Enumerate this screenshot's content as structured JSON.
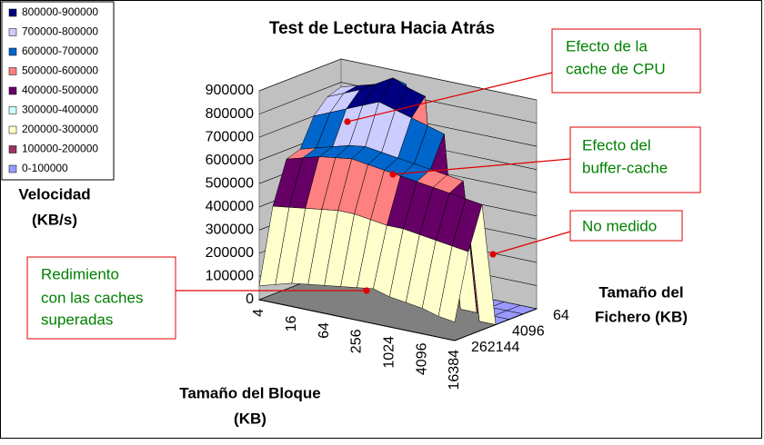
{
  "chart_data": {
    "type": "surface",
    "title": "Test de Lectura Hacia Atrás",
    "z_label": [
      "Velocidad",
      "(KB/s)"
    ],
    "x_label": [
      "Tamaño del Bloque",
      "(KB)"
    ],
    "y_label": [
      "Tamaño del",
      "Fichero (KB)"
    ],
    "categories": [
      4,
      null,
      16,
      null,
      64,
      null,
      256,
      null,
      1024,
      null,
      4096,
      null,
      16384
    ],
    "depth_categories": [
      64,
      null,
      null,
      4096,
      null,
      null,
      262144
    ],
    "zlim": [
      0,
      900000
    ],
    "zticks": [
      0,
      100000,
      200000,
      300000,
      400000,
      500000,
      600000,
      700000,
      800000,
      900000
    ],
    "legend": [
      {
        "name": "800000-900000",
        "color": "#000080"
      },
      {
        "name": "700000-800000",
        "color": "#ccccff"
      },
      {
        "name": "600000-700000",
        "color": "#0066cc"
      },
      {
        "name": "500000-600000",
        "color": "#ff8080"
      },
      {
        "name": "400000-500000",
        "color": "#660066"
      },
      {
        "name": "300000-400000",
        "color": "#ccffff"
      },
      {
        "name": "200000-300000",
        "color": "#ffffcc"
      },
      {
        "name": "100000-200000",
        "color": "#993366"
      },
      {
        "name": "0-100000",
        "color": "#9999ff"
      }
    ],
    "series": [
      {
        "values": [
          780000,
          800000,
          820000,
          840000,
          850000,
          0,
          0,
          0,
          0,
          0,
          0,
          0,
          0
        ]
      },
      {
        "values": [
          760000,
          790000,
          820000,
          860000,
          900000,
          870000,
          850000,
          0,
          0,
          0,
          0,
          0,
          0
        ]
      },
      {
        "values": [
          700000,
          730000,
          760000,
          790000,
          820000,
          800000,
          780000,
          760000,
          740000,
          0,
          0,
          0,
          0
        ]
      },
      {
        "values": [
          580000,
          600000,
          620000,
          640000,
          650000,
          640000,
          630000,
          620000,
          610000,
          600000,
          590000,
          0,
          0
        ]
      },
      {
        "values": [
          560000,
          580000,
          600000,
          610000,
          620000,
          610000,
          600000,
          590000,
          580000,
          570000,
          560000,
          550000,
          540000
        ]
      },
      {
        "values": [
          380000,
          390000,
          400000,
          410000,
          420000,
          420000,
          410000,
          400000,
          400000,
          390000,
          380000,
          370000,
          360000
        ]
      },
      {
        "values": [
          60000,
          80000,
          100000,
          110000,
          120000,
          130000,
          140000,
          150000,
          130000,
          120000,
          110000,
          90000,
          80000
        ]
      }
    ],
    "annotations": [
      {
        "lines": [
          "Efecto de la",
          "cache de CPU"
        ]
      },
      {
        "lines": [
          "Efecto del",
          "buffer-cache"
        ]
      },
      {
        "lines": [
          "No medido"
        ]
      },
      {
        "lines": [
          "Redimiento",
          "con las caches",
          "superadas"
        ]
      }
    ]
  }
}
